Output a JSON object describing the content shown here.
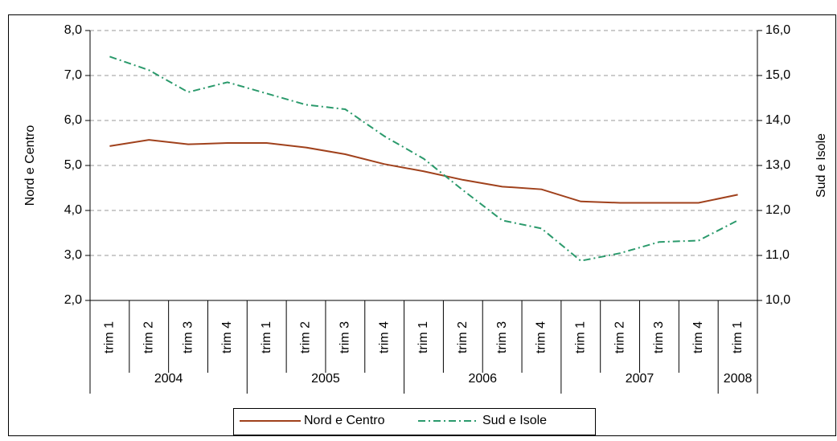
{
  "chart_data": {
    "type": "line",
    "categories": [
      "trim 1",
      "trim 2",
      "trim 3",
      "trim 4",
      "trim 1",
      "trim 2",
      "trim 3",
      "trim 4",
      "trim 1",
      "trim 2",
      "trim 3",
      "trim 4",
      "trim 1",
      "trim 2",
      "trim 3",
      "trim 4",
      "trim 1"
    ],
    "year_groups": [
      {
        "label": "2004",
        "span": 4
      },
      {
        "label": "2005",
        "span": 4
      },
      {
        "label": "2006",
        "span": 4
      },
      {
        "label": "2007",
        "span": 4
      },
      {
        "label": "2008",
        "span": 1
      }
    ],
    "y_label": "Nord e Centro",
    "y2_label": "Sud e Isole",
    "ylim": [
      2,
      8
    ],
    "yticks": [
      {
        "value": 2,
        "label": "2,0"
      },
      {
        "value": 3,
        "label": "3,0"
      },
      {
        "value": 4,
        "label": "4,0"
      },
      {
        "value": 5,
        "label": "5,0"
      },
      {
        "value": 6,
        "label": "6,0"
      },
      {
        "value": 7,
        "label": "7,0"
      },
      {
        "value": 8,
        "label": "8,0"
      }
    ],
    "y2lim": [
      10,
      16
    ],
    "y2ticks": [
      {
        "value": 10,
        "label": "10,0"
      },
      {
        "value": 11,
        "label": "11,0"
      },
      {
        "value": 12,
        "label": "12,0"
      },
      {
        "value": 13,
        "label": "13,0"
      },
      {
        "value": 14,
        "label": "14,0"
      },
      {
        "value": 15,
        "label": "15,0"
      },
      {
        "value": 16,
        "label": "16,0"
      }
    ],
    "grid": true,
    "legend": "bottom",
    "series": [
      {
        "name": "Nord e Centro",
        "color": "#a0411c",
        "dash": "solid",
        "values": [
          5.43,
          5.57,
          5.47,
          5.5,
          5.5,
          5.4,
          5.25,
          5.03,
          4.87,
          4.68,
          4.53,
          4.47,
          4.2,
          4.17,
          4.17,
          4.17,
          4.35
        ]
      },
      {
        "name": "Sud e Isole",
        "color": "#2b9a6c",
        "dash": "dashdot",
        "axis": "y2",
        "values": [
          15.42,
          15.12,
          14.63,
          14.85,
          14.6,
          14.35,
          14.25,
          13.65,
          13.15,
          12.45,
          11.78,
          11.6,
          10.88,
          11.05,
          11.3,
          11.33,
          11.78
        ]
      }
    ]
  }
}
